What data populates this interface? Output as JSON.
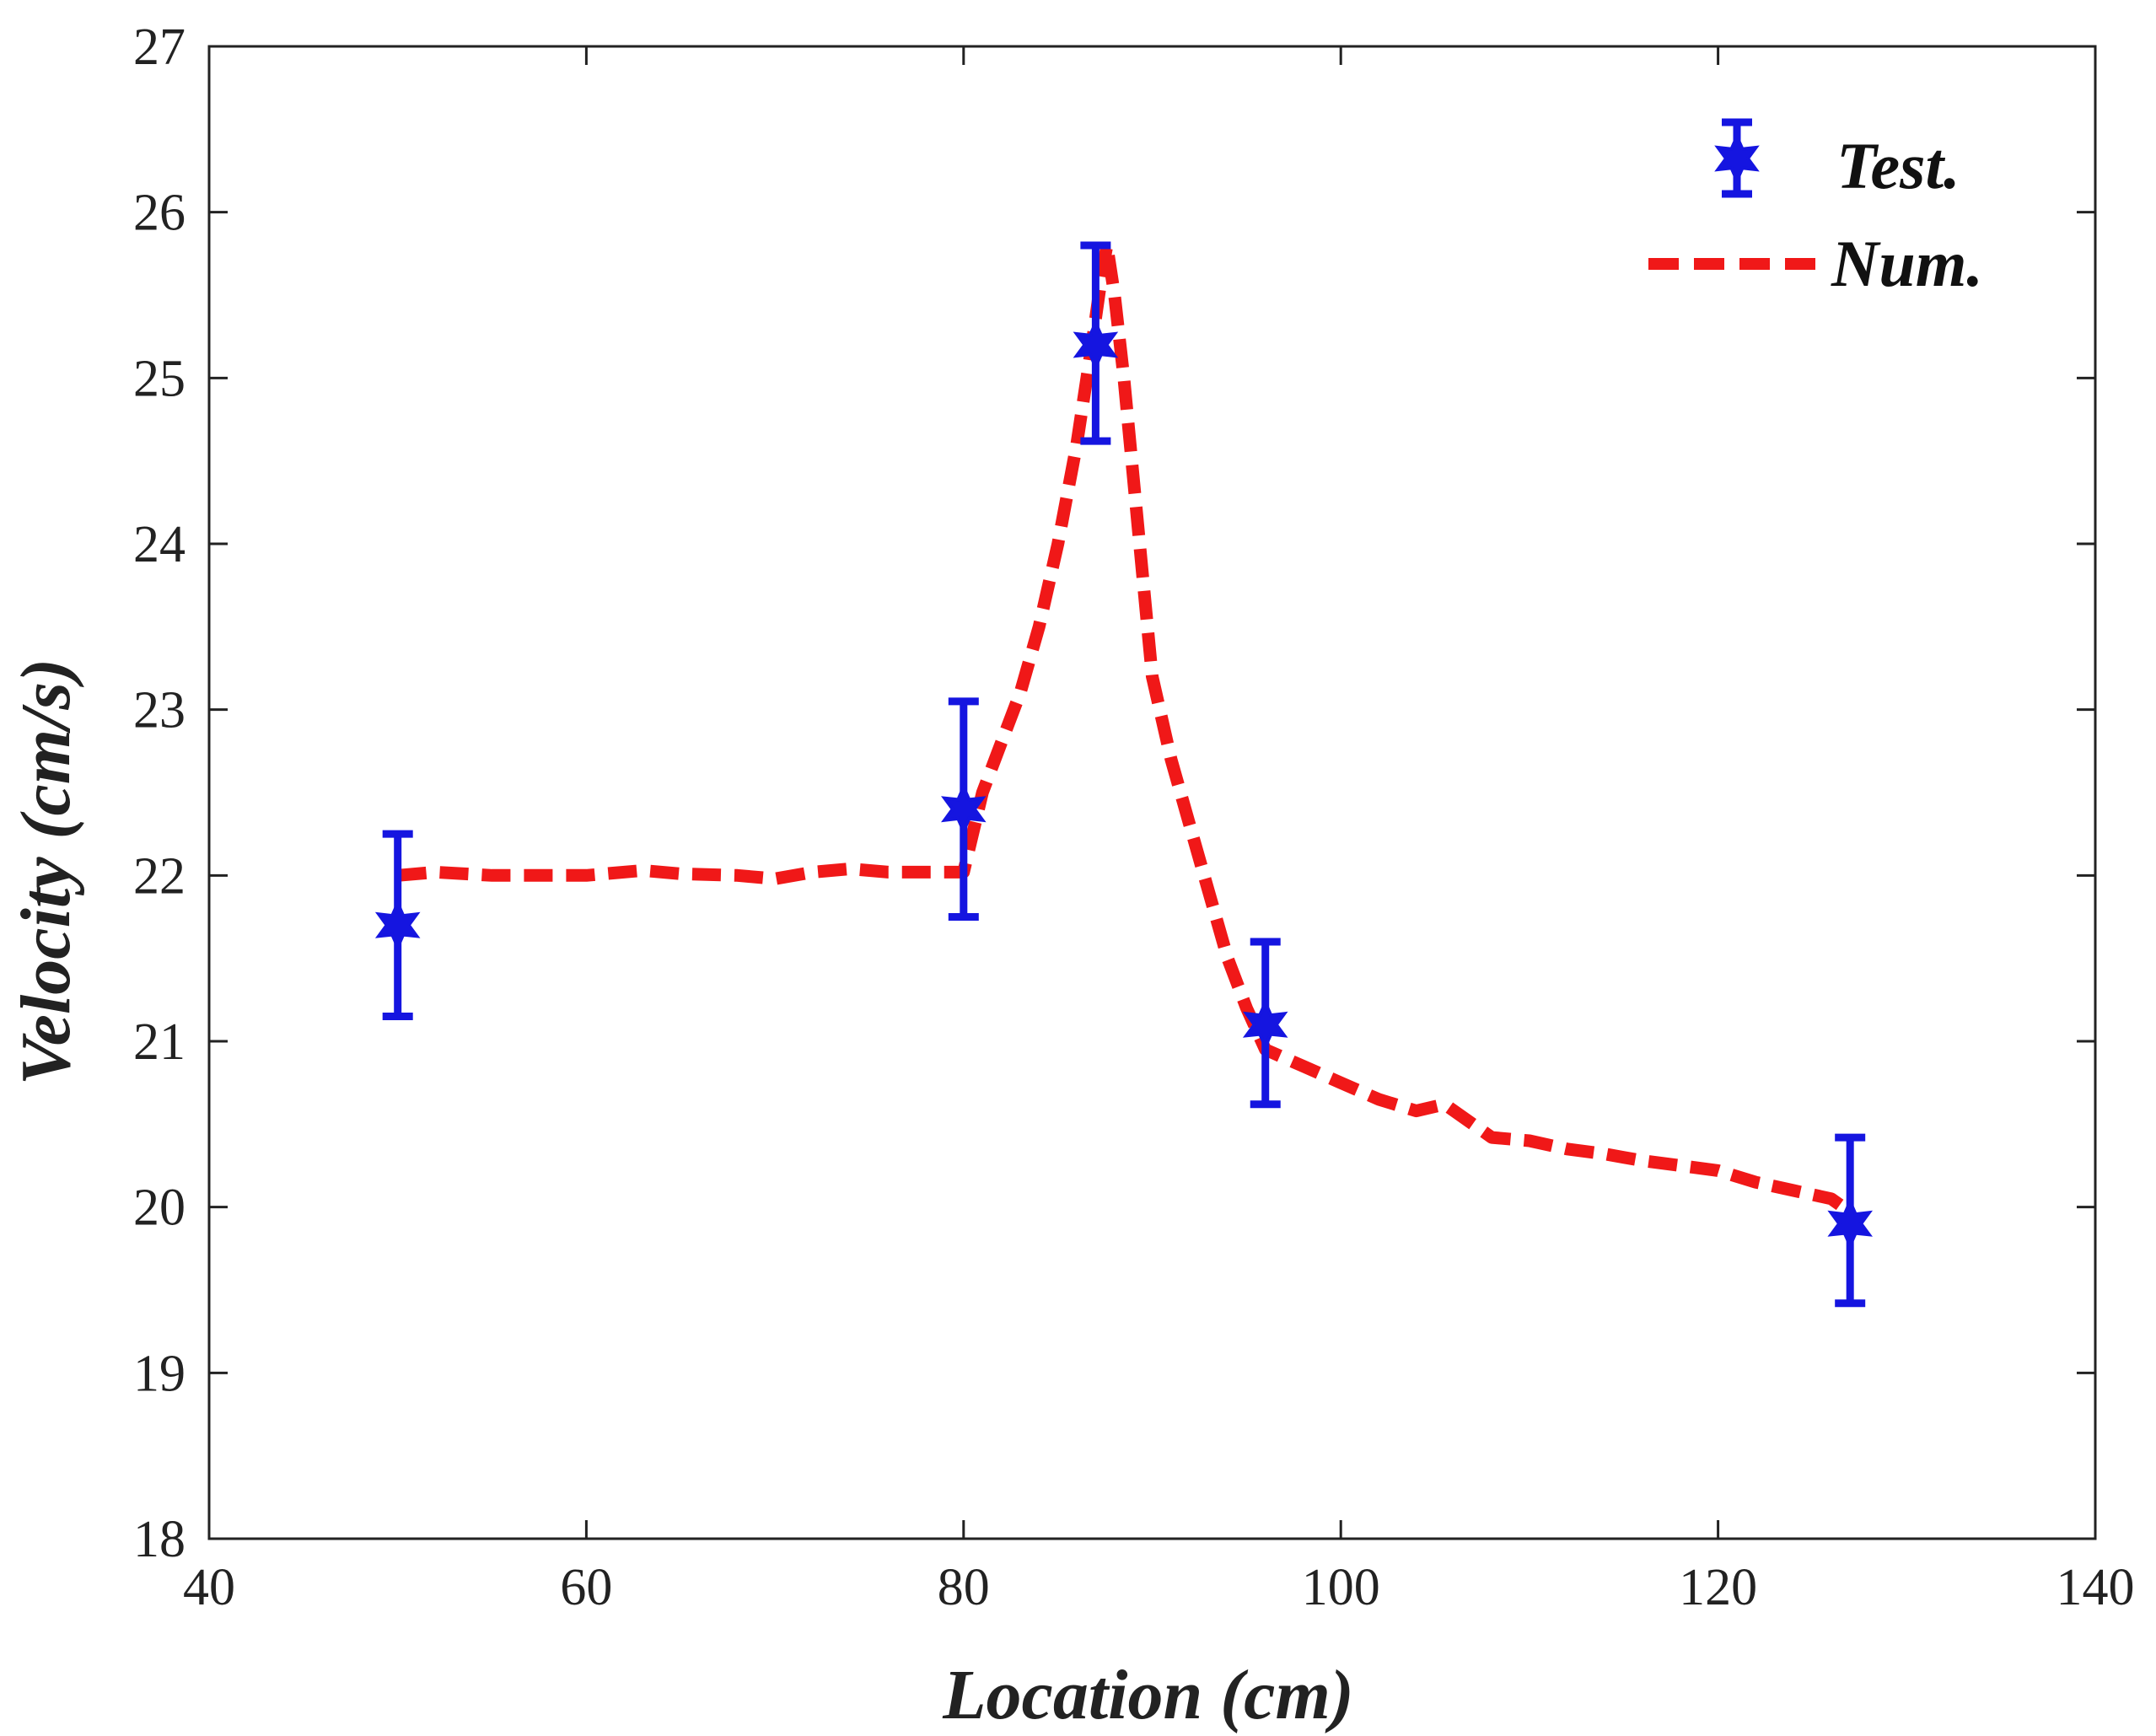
{
  "chart_data": {
    "type": "line",
    "title": "",
    "xlabel": "Location (cm)",
    "ylabel": "Velocity (cm/s)",
    "xlim": [
      40,
      140
    ],
    "ylim": [
      18,
      27
    ],
    "xticks": [
      40,
      60,
      80,
      100,
      120,
      140
    ],
    "yticks": [
      18,
      19,
      20,
      21,
      22,
      23,
      24,
      25,
      26,
      27
    ],
    "grid": false,
    "legend_position": "top-right",
    "colors": {
      "test": "#1515e0",
      "num": "#f01818",
      "axis": "#222222"
    },
    "series": [
      {
        "name": "Test.",
        "kind": "errorbar",
        "marker": "star",
        "x": [
          50,
          80,
          87,
          96,
          127
        ],
        "y": [
          21.7,
          22.4,
          25.2,
          21.1,
          19.9
        ],
        "err_low": [
          21.15,
          21.75,
          24.62,
          20.62,
          19.42
        ],
        "err_high": [
          22.25,
          23.05,
          25.8,
          21.6,
          20.42
        ]
      },
      {
        "name": "Num.",
        "kind": "dashed-line",
        "x": [
          50,
          52,
          55,
          58,
          60,
          63,
          65,
          68,
          70,
          72,
          74,
          76,
          78,
          80,
          81,
          82,
          83,
          84,
          85,
          86,
          86.8,
          87.3,
          87.6,
          88,
          88.5,
          89,
          89.5,
          90,
          91,
          92,
          93,
          94,
          95,
          96,
          97,
          98,
          100,
          102,
          104,
          105.5,
          107,
          108,
          110,
          112,
          114,
          115,
          116,
          118,
          120,
          122,
          124,
          126,
          127
        ],
        "y": [
          22.0,
          22.02,
          22.0,
          22.0,
          22.0,
          22.03,
          22.01,
          22.0,
          21.98,
          22.02,
          22.04,
          22.02,
          22.02,
          22.02,
          22.5,
          22.8,
          23.1,
          23.5,
          24.0,
          24.6,
          25.2,
          25.6,
          25.8,
          25.5,
          25.0,
          24.4,
          23.8,
          23.2,
          22.7,
          22.3,
          21.9,
          21.5,
          21.2,
          20.95,
          20.9,
          20.85,
          20.75,
          20.65,
          20.58,
          20.62,
          20.5,
          20.42,
          20.4,
          20.35,
          20.32,
          20.3,
          20.28,
          20.25,
          20.22,
          20.15,
          20.1,
          20.05,
          19.97
        ]
      }
    ]
  }
}
